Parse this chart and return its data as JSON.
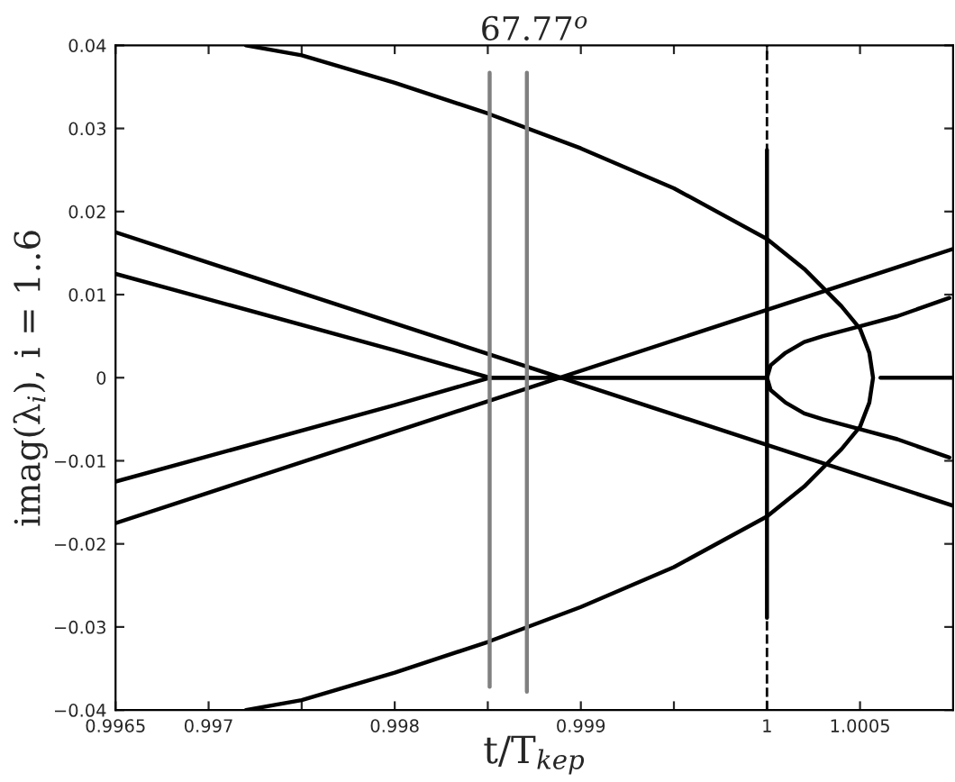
{
  "chart_data": {
    "type": "line",
    "title": "67.77$^{o}$",
    "xlabel": "t/T$_{kep}$",
    "ylabel": "imag(λ$_{i}$), i = 1..6",
    "xlim": [
      0.9965,
      1.001
    ],
    "ylim": [
      -0.04,
      0.04
    ],
    "xticks": [
      0.9965,
      0.997,
      {
        "value": 0.9975,
        "label": null
      },
      0.998,
      {
        "value": 0.9985,
        "label": null
      },
      0.999,
      {
        "value": 0.9995,
        "label": null
      },
      1,
      1.0005
    ],
    "yticks": [
      {
        "value": -0.04,
        "label": "−0.04"
      },
      {
        "value": -0.03,
        "label": "−0.03"
      },
      {
        "value": -0.02,
        "label": "−0.02"
      },
      {
        "value": -0.01,
        "label": "−0.01"
      },
      0,
      0.01,
      0.02,
      0.03,
      0.04
    ],
    "grid": false,
    "marker": "none",
    "ref_lines": [
      {
        "axis": "x",
        "value": 1,
        "color": "#000000",
        "line_style": "dashed"
      }
    ],
    "series": [
      {
        "color": "#000000",
        "line_style": "solid",
        "x": [
          0.9972,
          0.9975,
          0.998,
          0.9985,
          0.999,
          0.9995,
          1.0,
          1.0002,
          1.0004,
          1.0005,
          1.00055,
          1.00057,
          1.00055,
          1.0005,
          1.0004,
          1.0002,
          1.0,
          0.9995,
          0.999,
          0.9985,
          0.998,
          0.9975,
          0.9972
        ],
        "values": [
          0.04,
          0.0388,
          0.0355,
          0.0318,
          0.0276,
          0.0228,
          0.0167,
          0.0131,
          0.0086,
          0.0059,
          0.003,
          0.0,
          -0.003,
          -0.0059,
          -0.0086,
          -0.0131,
          -0.0167,
          -0.0228,
          -0.0276,
          -0.0318,
          -0.0355,
          -0.0388,
          -0.04
        ]
      },
      {
        "color": "#000000",
        "line_style": "solid",
        "x": [
          1.00061,
          1.001
        ],
        "values": [
          0.0,
          0.0
        ]
      },
      {
        "color": "#000000",
        "line_style": "solid",
        "x": [
          0.9965,
          1.001
        ],
        "values": [
          0.0175,
          -0.0154
        ]
      },
      {
        "color": "#000000",
        "line_style": "solid",
        "x": [
          0.9965,
          1.001
        ],
        "values": [
          -0.0175,
          0.0155
        ]
      },
      {
        "color": "#000000",
        "line_style": "solid",
        "x": [
          0.9965,
          0.998,
          0.99851,
          1.0,
          1.00002,
          1.0001,
          1.0002,
          1.0003,
          1.0005,
          1.0007,
          1.00098
        ],
        "values": [
          0.0125,
          0.0033,
          0.0,
          0.0,
          0.0015,
          0.003,
          0.0043,
          0.005,
          0.0062,
          0.0074,
          0.0096
        ]
      },
      {
        "color": "#000000",
        "line_style": "solid",
        "x": [
          0.9965,
          0.998,
          0.99851,
          1.0,
          1.00002,
          1.0001,
          1.0002,
          1.0003,
          1.0005,
          1.0007,
          1.00098
        ],
        "values": [
          -0.0125,
          -0.0033,
          0.0,
          0.0,
          -0.0015,
          -0.003,
          -0.0043,
          -0.005,
          -0.0062,
          -0.0074,
          -0.0096
        ]
      },
      {
        "color": "#808080",
        "line_style": "solid",
        "x": [
          0.99851,
          0.99851
        ],
        "values": [
          0.0367,
          -0.0372
        ]
      },
      {
        "color": "#808080",
        "line_style": "solid",
        "x": [
          0.99871,
          0.99871
        ],
        "values": [
          0.0367,
          -0.0378
        ]
      },
      {
        "color": "#000000",
        "line_style": "solid",
        "x": [
          1.0,
          1.0
        ],
        "values": [
          0.0274,
          -0.0289
        ]
      }
    ]
  }
}
